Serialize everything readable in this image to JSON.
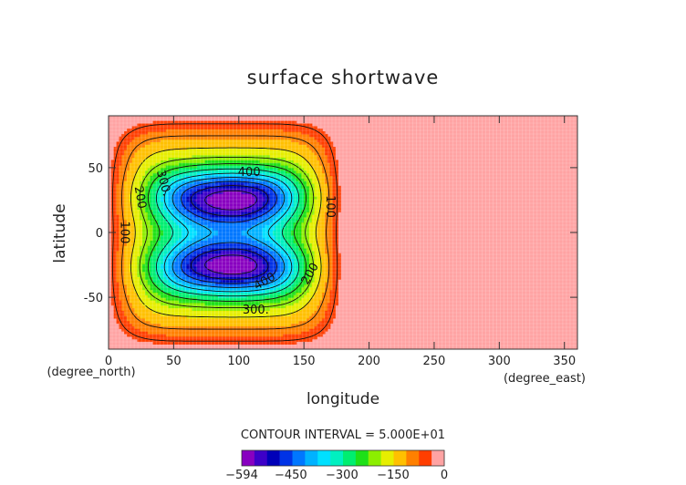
{
  "chart_data": {
    "type": "heatmap",
    "title": "surface shortwave",
    "xlabel": "longitude",
    "ylabel": "latitude",
    "x_unit": "(degree_east)",
    "y_unit": "(degree_north)",
    "xlim": [
      0,
      360
    ],
    "ylim": [
      -90,
      90
    ],
    "x_ticks": [
      0,
      50,
      100,
      150,
      200,
      250,
      300,
      350
    ],
    "y_ticks": [
      -50,
      0,
      50
    ],
    "field": {
      "min": -594,
      "max": 0,
      "lon_extent": [
        0,
        178
      ],
      "centers": [
        {
          "lon": 95,
          "lat": 27,
          "value": -594
        },
        {
          "lon": 95,
          "lat": -27,
          "value": -594
        }
      ]
    },
    "contour_interval_text": "CONTOUR INTERVAL = 5.000E+01",
    "contour_interval": 50,
    "contour_labels": [
      {
        "text": "100",
        "lon": 12,
        "lat": 0,
        "angle": 90
      },
      {
        "text": "200",
        "lon": 24,
        "lat": 27,
        "angle": 80
      },
      {
        "text": "300.",
        "lon": 42,
        "lat": 38,
        "angle": 75
      },
      {
        "text": "400",
        "lon": 108,
        "lat": 46,
        "angle": 0
      },
      {
        "text": "100",
        "lon": 170,
        "lat": 20,
        "angle": 90
      },
      {
        "text": "200",
        "lon": 155,
        "lat": -32,
        "angle": -60
      },
      {
        "text": "400",
        "lon": 120,
        "lat": -38,
        "angle": -30
      },
      {
        "text": "300.",
        "lon": 113,
        "lat": -60,
        "angle": 0
      }
    ],
    "colorbar": {
      "colors": [
        "#8800c0",
        "#3d00c8",
        "#0000b8",
        "#0033e6",
        "#0077ff",
        "#00b2ff",
        "#00e0ff",
        "#00f0c0",
        "#00ee70",
        "#1ee018",
        "#8cee00",
        "#e6ee00",
        "#ffc000",
        "#ff8000",
        "#ff3e00",
        "#ffa3a3"
      ],
      "labels": [
        "-594",
        "-450",
        "-300",
        "-150",
        "0"
      ],
      "label_values": [
        -594,
        -450,
        -300,
        -150,
        0
      ]
    },
    "grid": true
  }
}
